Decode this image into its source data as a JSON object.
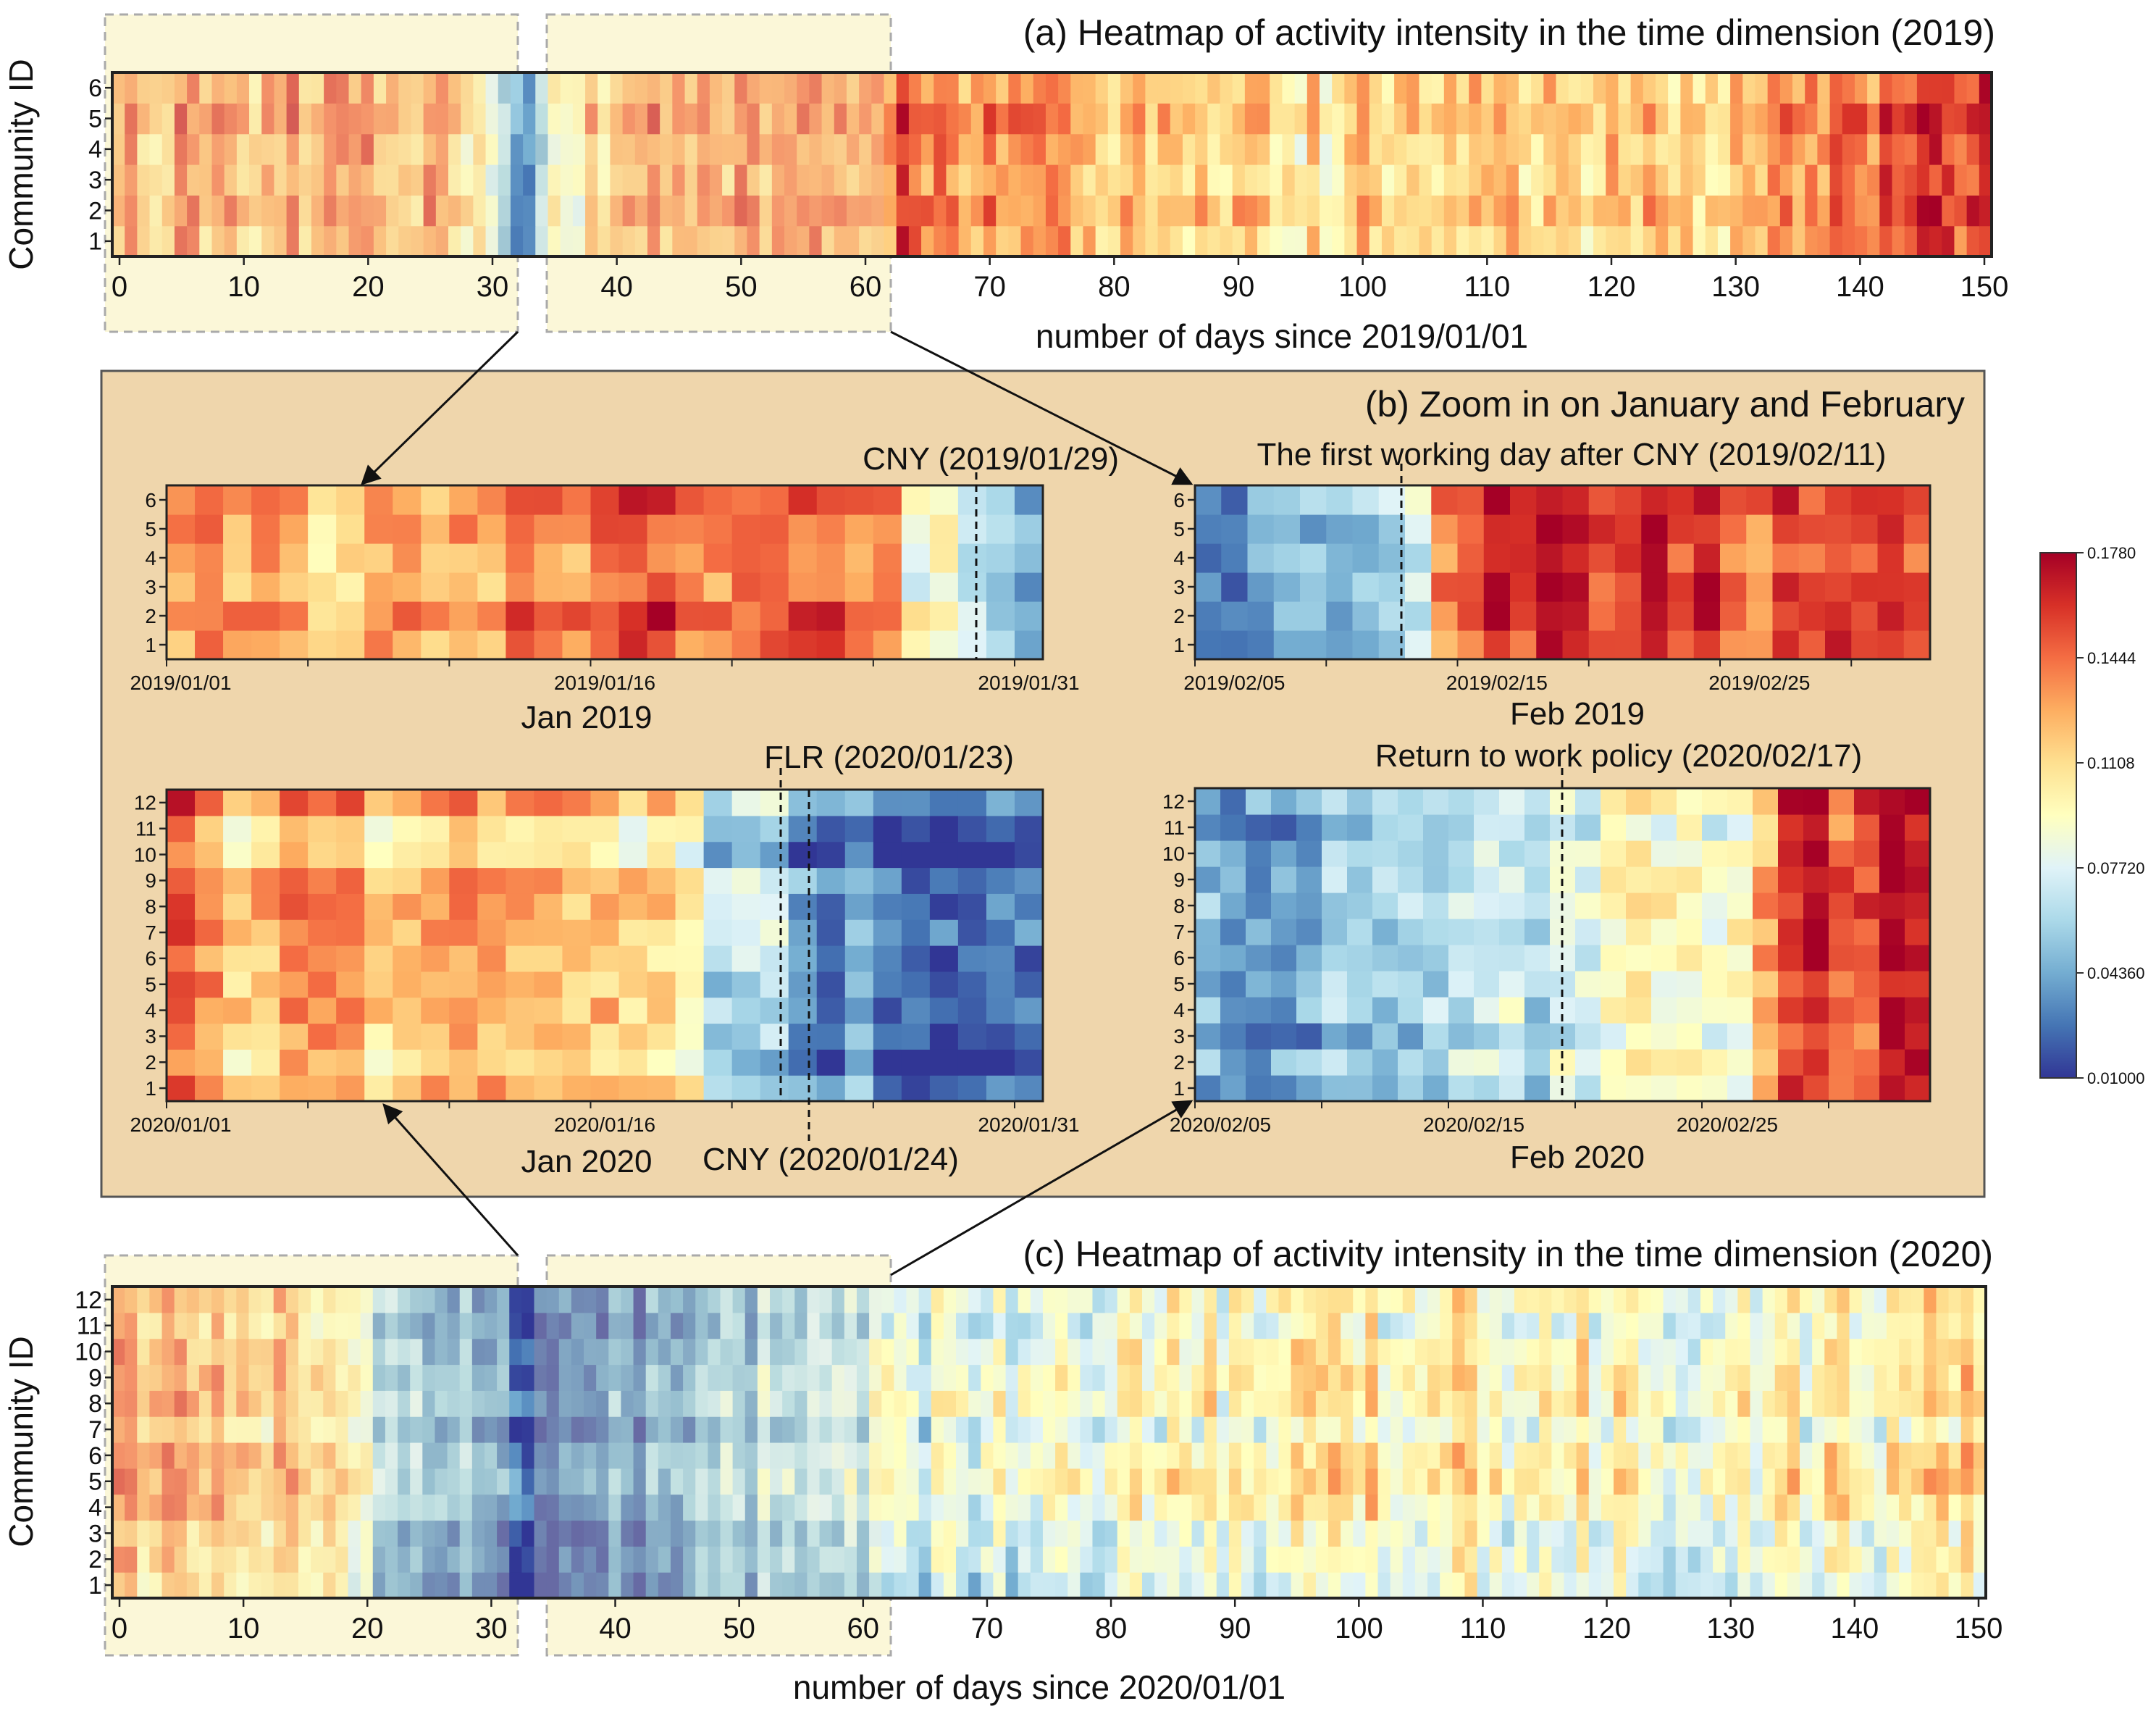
{
  "figure": {
    "colors": {
      "panel_bg": "#efd6ac",
      "highlight": "#fbf7d8",
      "frame": "#222222"
    },
    "colorbar": {
      "ticks": [
        "0.1780",
        "0.1444",
        "0.1108",
        "0.07720",
        "0.04360",
        "0.01000"
      ],
      "min": 0.01,
      "max": 0.178,
      "stops": [
        "#313695",
        "#4575b4",
        "#74add1",
        "#abd9e9",
        "#e0f3f8",
        "#ffffbf",
        "#fee090",
        "#fdae61",
        "#f46d43",
        "#d73027",
        "#a50026"
      ]
    }
  },
  "chart_data": [
    {
      "id": "a",
      "type": "heatmap",
      "title": "(a) Heatmap of activity intensity in the time dimension (2019)",
      "xlabel": "number of days since 2019/01/01",
      "ylabel": "Community ID",
      "xlim": [
        0,
        150
      ],
      "xticks": [
        "0",
        "10",
        "20",
        "30",
        "40",
        "50",
        "60",
        "70",
        "80",
        "90",
        "100",
        "110",
        "120",
        "130",
        "140",
        "150"
      ],
      "y": [
        "1",
        "2",
        "3",
        "4",
        "5",
        "6"
      ],
      "profile_days": [
        0,
        10,
        20,
        28,
        30,
        32,
        33,
        40,
        50,
        60,
        62,
        70,
        80,
        90,
        100,
        110,
        120,
        130,
        140,
        150
      ],
      "profile_values": [
        0.135,
        0.13,
        0.145,
        0.125,
        0.09,
        0.04,
        0.06,
        0.13,
        0.135,
        0.14,
        0.155,
        0.14,
        0.13,
        0.12,
        0.115,
        0.12,
        0.12,
        0.125,
        0.15,
        0.16
      ],
      "highlights_days": [
        [
          0,
          32
        ],
        [
          34,
          62
        ]
      ]
    },
    {
      "id": "b1",
      "type": "heatmap",
      "title": "Jan 2019",
      "x_date_labels": [
        "2019/01/01",
        "2019/01/16",
        "2019/01/31"
      ],
      "y": [
        "1",
        "2",
        "3",
        "4",
        "5",
        "6"
      ],
      "annotation": "CNY (2019/01/29)",
      "profile_days": [
        1,
        7,
        10,
        15,
        18,
        22,
        26,
        28,
        29,
        31
      ],
      "profile_values": [
        0.13,
        0.12,
        0.13,
        0.14,
        0.15,
        0.155,
        0.13,
        0.1,
        0.08,
        0.05
      ]
    },
    {
      "id": "b2",
      "type": "heatmap",
      "title": "Feb 2019",
      "x_date_labels": [
        "2019/02/05",
        "2019/02/15",
        "2019/02/25"
      ],
      "y": [
        "1",
        "2",
        "3",
        "4",
        "5",
        "6"
      ],
      "annotation": "The first working day after CNY (2019/02/11)",
      "profile_days": [
        1,
        6,
        9,
        10,
        11,
        13,
        17,
        20,
        24,
        28
      ],
      "profile_values": [
        0.035,
        0.04,
        0.045,
        0.1,
        0.155,
        0.16,
        0.158,
        0.15,
        0.155,
        0.14
      ]
    },
    {
      "id": "b3",
      "type": "heatmap",
      "title": "Jan 2020",
      "x_date_labels": [
        "2020/01/01",
        "2020/01/16",
        "2020/01/31"
      ],
      "y": [
        "1",
        "2",
        "3",
        "4",
        "5",
        "6",
        "7",
        "8",
        "9",
        "10",
        "11",
        "12"
      ],
      "annotations": [
        "FLR (2020/01/23)",
        "CNY (2020/01/24)"
      ],
      "profile_days": [
        1,
        2,
        8,
        12,
        15,
        18,
        20,
        22,
        24,
        28,
        31
      ],
      "profile_values": [
        0.15,
        0.125,
        0.118,
        0.12,
        0.112,
        0.098,
        0.075,
        0.055,
        0.035,
        0.028,
        0.026
      ]
    },
    {
      "id": "b4",
      "type": "heatmap",
      "title": "Feb 2020",
      "x_date_labels": [
        "2020/02/05",
        "2020/02/15",
        "2020/02/25"
      ],
      "y": [
        "1",
        "2",
        "3",
        "4",
        "5",
        "6",
        "7",
        "8",
        "9",
        "10",
        "11",
        "12"
      ],
      "annotation": "Return to work policy (2020/02/17)",
      "profile_days": [
        1,
        6,
        10,
        14,
        16,
        18,
        20,
        22,
        24,
        29
      ],
      "profile_values": [
        0.04,
        0.045,
        0.055,
        0.06,
        0.085,
        0.095,
        0.1,
        0.085,
        0.15,
        0.155
      ]
    },
    {
      "id": "c",
      "type": "heatmap",
      "title": "(c) Heatmap of activity intensity in the time dimension (2020)",
      "xlabel": "number of days since 2020/01/01",
      "ylabel": "Community ID",
      "xlim": [
        0,
        150
      ],
      "xticks": [
        "0",
        "10",
        "20",
        "30",
        "40",
        "50",
        "60",
        "70",
        "80",
        "90",
        "100",
        "110",
        "120",
        "130",
        "140",
        "150"
      ],
      "y": [
        "1",
        "2",
        "3",
        "4",
        "5",
        "6",
        "7",
        "8",
        "9",
        "10",
        "11",
        "12"
      ],
      "profile_days": [
        0,
        2,
        10,
        17,
        20,
        23,
        30,
        40,
        50,
        60,
        65,
        80,
        90,
        100,
        110,
        120,
        125,
        135,
        150
      ],
      "profile_values": [
        0.14,
        0.12,
        0.118,
        0.11,
        0.08,
        0.05,
        0.03,
        0.03,
        0.05,
        0.07,
        0.07,
        0.085,
        0.09,
        0.1,
        0.095,
        0.09,
        0.085,
        0.095,
        0.1
      ],
      "highlights_days": [
        [
          0,
          32
        ],
        [
          34,
          62
        ]
      ]
    }
  ]
}
